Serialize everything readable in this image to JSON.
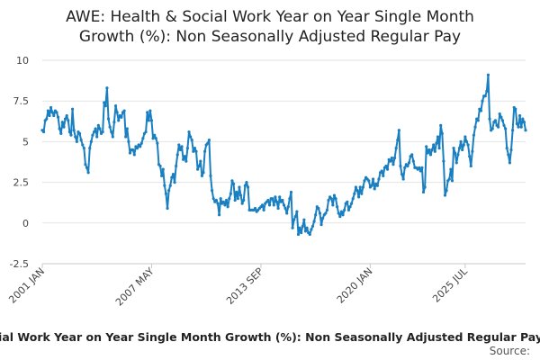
{
  "chart_data": {
    "type": "line",
    "title": [
      "AWE: Health & Social Work Year on Year Single Month",
      "Growth (%): Non Seasonally Adjusted Regular Pay"
    ],
    "xlabel": "",
    "ylabel": "",
    "x_range": [
      "2001 JAN",
      "2025 JUL"
    ],
    "ylim": [
      -2.5,
      10
    ],
    "yticks": [
      "10",
      "7.5",
      "5",
      "2.5",
      "0",
      "-2.5"
    ],
    "xticks": [
      "2001 JAN",
      "2007 MAY",
      "2013 SEP",
      "2020 JAN",
      "2025 JUL"
    ],
    "series": [
      {
        "name": "AWE: Health & Social Work Year on Year Single Month Growth (%): Non Seasonally Adjusted Regular Pay",
        "color": "#1a7fc1",
        "x_start": "2001-01",
        "frequency": "monthly",
        "values": [
          5.7,
          5.6,
          6.3,
          6.4,
          6.9,
          6.6,
          7.1,
          6.8,
          6.6,
          6.9,
          6.8,
          6.5,
          5.8,
          5.5,
          6.2,
          5.9,
          6.4,
          6.6,
          6.3,
          5.6,
          5.4,
          7.0,
          5.7,
          5.3,
          5.0,
          5.6,
          5.5,
          5.1,
          4.8,
          4.6,
          3.6,
          3.4,
          3.1,
          4.6,
          5.0,
          5.4,
          5.6,
          5.8,
          5.3,
          6.0,
          5.8,
          5.5,
          5.6,
          7.4,
          7.2,
          8.3,
          6.4,
          5.9,
          5.6,
          5.3,
          6.2,
          7.2,
          6.8,
          6.3,
          6.6,
          6.5,
          6.8,
          6.9,
          5.3,
          5.8,
          5.0,
          4.3,
          4.5,
          4.5,
          4.2,
          4.7,
          4.6,
          4.8,
          4.7,
          4.9,
          5.2,
          5.5,
          5.6,
          6.8,
          6.3,
          6.9,
          6.3,
          5.2,
          5.4,
          5.2,
          4.9,
          3.6,
          3.5,
          2.9,
          3.3,
          2.3,
          1.8,
          0.9,
          2.0,
          2.3,
          2.8,
          3.0,
          2.5,
          3.5,
          4.2,
          4.8,
          4.5,
          4.7,
          3.9,
          4.1,
          3.8,
          4.6,
          5.6,
          5.3,
          5.1,
          4.4,
          4.6,
          4.4,
          3.3,
          3.5,
          3.8,
          2.9,
          3.1,
          4.4,
          4.8,
          4.9,
          5.1,
          2.9,
          2.0,
          1.5,
          1.3,
          1.4,
          1.2,
          0.5,
          1.5,
          1.2,
          1.3,
          1.1,
          1.4,
          1.0,
          1.5,
          1.8,
          2.6,
          2.4,
          1.4,
          1.9,
          1.5,
          2.2,
          1.7,
          1.2,
          1.4,
          2.3,
          2.5,
          2.2,
          0.8,
          0.8,
          0.8,
          0.8,
          0.9,
          0.7,
          0.8,
          0.9,
          1.0,
          1.1,
          0.8,
          1.2,
          1.3,
          1.4,
          1.1,
          1.5,
          1.5,
          1.1,
          1.6,
          1.3,
          0.9,
          1.6,
          1.3,
          1.4,
          1.1,
          0.9,
          0.6,
          1.0,
          1.5,
          1.9,
          -0.3,
          0.2,
          0.4,
          0.7,
          -0.7,
          -0.3,
          -0.6,
          -0.2,
          0.2,
          -0.5,
          -0.3,
          -0.6,
          -0.7,
          -0.4,
          -0.2,
          0.1,
          0.5,
          1.0,
          0.9,
          0.6,
          -0.1,
          0.3,
          0.5,
          0.6,
          0.8,
          1.4,
          1.6,
          1.5,
          1.1,
          1.7,
          1.5,
          1.0,
          0.6,
          0.4,
          0.7,
          0.5,
          0.8,
          1.2,
          1.3,
          0.8,
          1.0,
          1.2,
          1.5,
          1.8,
          2.2,
          2.0,
          1.6,
          2.2,
          1.8,
          2.2,
          2.6,
          2.8,
          2.7,
          2.6,
          2.2,
          2.3,
          2.7,
          2.1,
          2.4,
          2.3,
          2.7,
          3.1,
          3.2,
          2.9,
          3.4,
          3.5,
          3.3,
          3.9,
          3.8,
          4.0,
          3.6,
          4.0,
          4.6,
          5.1,
          5.7,
          3.5,
          3.0,
          2.7,
          3.4,
          3.6,
          3.5,
          3.7,
          4.1,
          4.2,
          3.8,
          3.4,
          3.4,
          3.3,
          3.4,
          3.2,
          3.4,
          1.9,
          2.2,
          4.7,
          4.3,
          4.5,
          4.2,
          4.5,
          4.8,
          4.4,
          4.9,
          5.3,
          4.6,
          6.0,
          5.5,
          3.8,
          1.7,
          2.0,
          2.6,
          2.7,
          3.3,
          2.6,
          4.6,
          4.3,
          3.7,
          4.2,
          4.6,
          5.0,
          4.5,
          4.8,
          5.3,
          5.0,
          4.8,
          4.1,
          3.5,
          4.4,
          5.4,
          5.9,
          6.4,
          6.3,
          7.0,
          6.9,
          7.5,
          7.8,
          7.8,
          8.1,
          9.1,
          6.4,
          5.7,
          5.8,
          6.2,
          6.3,
          6.0,
          5.9,
          6.7,
          6.5,
          6.3,
          6.0,
          5.8,
          4.6,
          4.2,
          3.7,
          4.5,
          5.7,
          7.1,
          7.0,
          6.1,
          5.9,
          6.6,
          5.9,
          6.4,
          6.2,
          5.7
        ]
      }
    ],
    "legend": "bottom",
    "source_label": "Source:"
  }
}
